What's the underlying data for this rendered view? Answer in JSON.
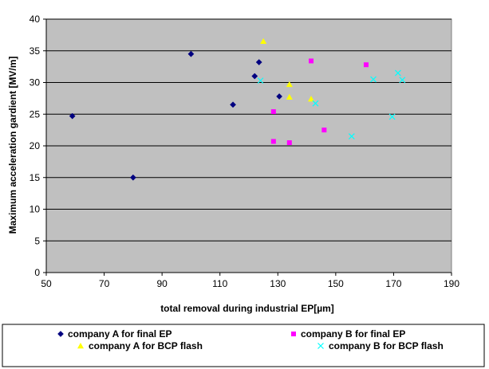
{
  "chart_data": {
    "type": "scatter",
    "xlabel": "total removal during industrial EP[µm]",
    "ylabel": "Maximum acceleration gardient [MV/m]",
    "xlim": [
      50,
      190
    ],
    "ylim": [
      0,
      40
    ],
    "x_ticks": [
      "50",
      "70",
      "90",
      "110",
      "130",
      "150",
      "170",
      "190"
    ],
    "y_ticks": [
      "0",
      "5",
      "10",
      "15",
      "20",
      "25",
      "30",
      "35",
      "40"
    ],
    "grid": "horizontal",
    "plot_background": "#c0c0c0",
    "legend_position": "bottom",
    "series": [
      {
        "name": "company A for final EP",
        "marker": "diamond",
        "color": "#000080",
        "points": [
          [
            59,
            24.7
          ],
          [
            80,
            15.0
          ],
          [
            100,
            34.5
          ],
          [
            114.5,
            26.5
          ],
          [
            122,
            31.0
          ],
          [
            123.5,
            33.2
          ],
          [
            130.5,
            27.8
          ]
        ]
      },
      {
        "name": "company B for final EP",
        "marker": "square",
        "color": "#ff00ff",
        "points": [
          [
            128.5,
            25.4
          ],
          [
            128.5,
            20.7
          ],
          [
            134,
            20.5
          ],
          [
            141.5,
            33.4
          ],
          [
            146,
            22.5
          ],
          [
            160.5,
            32.8
          ]
        ]
      },
      {
        "name": "company A for BCP flash",
        "marker": "triangle",
        "color": "#ffff00",
        "points": [
          [
            125,
            36.5
          ],
          [
            134,
            29.7
          ],
          [
            134,
            27.7
          ],
          [
            141.5,
            27.4
          ]
        ]
      },
      {
        "name": "company B for BCP flash",
        "marker": "x",
        "color": "#00ffff",
        "points": [
          [
            124,
            30.3
          ],
          [
            143,
            26.7
          ],
          [
            155.5,
            21.5
          ],
          [
            163,
            30.5
          ],
          [
            169.5,
            24.6
          ],
          [
            171.5,
            31.5
          ],
          [
            173,
            30.4
          ]
        ]
      }
    ]
  }
}
